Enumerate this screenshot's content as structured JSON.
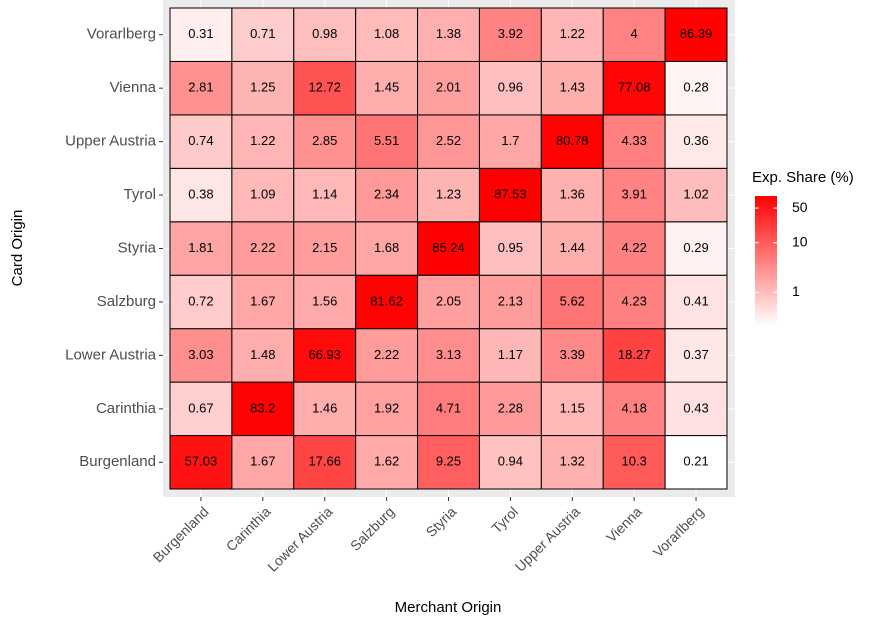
{
  "chart_data": {
    "type": "heatmap",
    "x_label": "Merchant Origin",
    "y_label": "Card Origin",
    "x_categories": [
      "Burgenland",
      "Carinthia",
      "Lower Austria",
      "Salzburg",
      "Styria",
      "Tyrol",
      "Upper Austria",
      "Vienna",
      "Vorarlberg"
    ],
    "y_categories": [
      "Burgenland",
      "Carinthia",
      "Lower Austria",
      "Salzburg",
      "Styria",
      "Tyrol",
      "Upper Austria",
      "Vienna",
      "Vorarlberg"
    ],
    "values": [
      [
        57.03,
        1.67,
        17.66,
        1.62,
        9.25,
        0.94,
        1.32,
        10.3,
        0.21
      ],
      [
        0.67,
        83.2,
        1.46,
        1.92,
        4.71,
        2.28,
        1.15,
        4.18,
        0.43
      ],
      [
        3.03,
        1.48,
        66.93,
        2.22,
        3.13,
        1.17,
        3.39,
        18.27,
        0.37
      ],
      [
        0.72,
        1.67,
        1.56,
        81.62,
        2.05,
        2.13,
        5.62,
        4.23,
        0.41
      ],
      [
        1.81,
        2.22,
        2.15,
        1.68,
        85.24,
        0.95,
        1.44,
        4.22,
        0.29
      ],
      [
        0.38,
        1.09,
        1.14,
        2.34,
        1.23,
        87.53,
        1.36,
        3.91,
        1.02
      ],
      [
        0.74,
        1.22,
        2.85,
        5.51,
        2.52,
        1.7,
        80.78,
        4.33,
        0.36
      ],
      [
        2.81,
        1.25,
        12.72,
        1.45,
        2.01,
        0.96,
        1.43,
        77.08,
        0.28
      ],
      [
        0.31,
        0.71,
        0.98,
        1.08,
        1.38,
        3.92,
        1.22,
        4,
        86.39
      ]
    ],
    "legend_title": "Exp. Share (%)",
    "color_ticks": [
      1,
      10,
      50
    ],
    "color_log_scale": true,
    "color_low": "#FFFFFF",
    "color_high": "#FF0000",
    "grid": true
  }
}
